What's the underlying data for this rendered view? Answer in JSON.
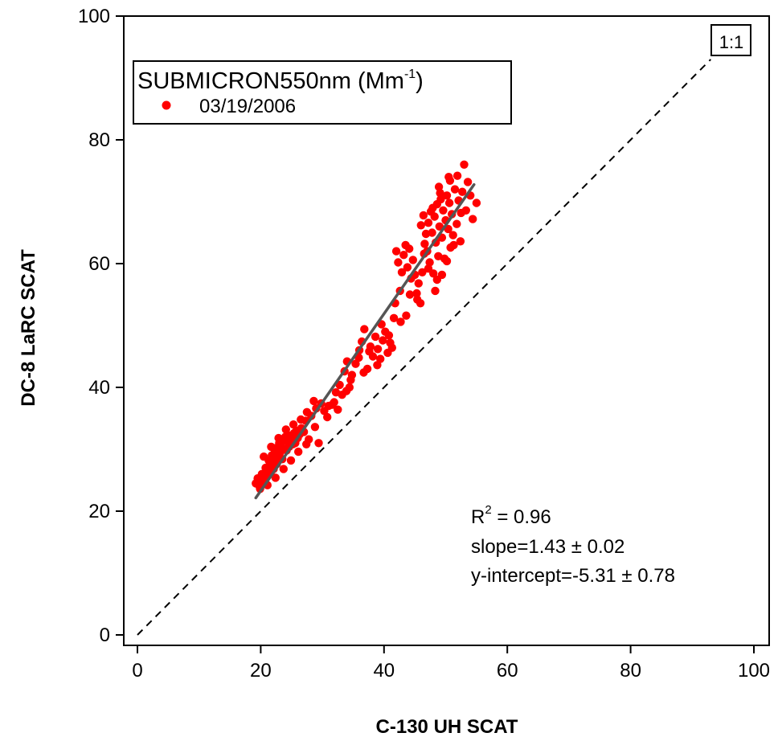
{
  "chart_data": {
    "type": "scatter",
    "xlabel": "C-130 UH SCAT",
    "ylabel": "DC-8 LaRC SCAT",
    "xlim": [
      -1,
      100
    ],
    "ylim": [
      -1,
      100
    ],
    "x_ticks": [
      0,
      20,
      40,
      60,
      80,
      100
    ],
    "y_ticks": [
      0,
      20,
      40,
      60,
      80,
      100
    ],
    "legend": {
      "title_main": "SUBMICRON550nm (Mm",
      "title_sup": "-1",
      "title_close": ")",
      "entries": [
        "03/19/2006"
      ],
      "placement": "top-left"
    },
    "one_to_one_label": "1:1",
    "stats": {
      "r2_prefix": "R",
      "r2_sup": "2",
      "r2_value": " = 0.96",
      "slope": "slope=1.43 ± 0.02",
      "intercept": "y-intercept=-5.31 ± 0.78"
    },
    "fit": {
      "slope": 1.43,
      "intercept": -5.31,
      "x_range": [
        19.2,
        54.6
      ]
    },
    "series": [
      {
        "name": "03/19/2006",
        "color": "#ff0000",
        "points": [
          [
            19.2,
            24.5
          ],
          [
            19.5,
            25.3
          ],
          [
            19.8,
            24.0
          ],
          [
            20.0,
            24.8
          ],
          [
            20.2,
            26.0
          ],
          [
            20.4,
            25.2
          ],
          [
            20.6,
            24.6
          ],
          [
            20.8,
            27.0
          ],
          [
            21.0,
            25.8
          ],
          [
            21.2,
            26.5
          ],
          [
            21.3,
            28.2
          ],
          [
            21.5,
            27.4
          ],
          [
            21.6,
            26.2
          ],
          [
            21.8,
            29.0
          ],
          [
            22.0,
            28.0
          ],
          [
            22.1,
            26.8
          ],
          [
            22.3,
            29.6
          ],
          [
            22.5,
            30.2
          ],
          [
            22.6,
            27.6
          ],
          [
            22.8,
            28.8
          ],
          [
            23.0,
            31.0
          ],
          [
            23.1,
            29.4
          ],
          [
            23.3,
            30.6
          ],
          [
            23.5,
            28.4
          ],
          [
            23.6,
            31.4
          ],
          [
            23.8,
            30.0
          ],
          [
            24.0,
            32.0
          ],
          [
            24.2,
            29.8
          ],
          [
            24.4,
            31.2
          ],
          [
            24.6,
            30.4
          ],
          [
            24.8,
            32.2
          ],
          [
            25.0,
            31.6
          ],
          [
            25.2,
            30.8
          ],
          [
            25.4,
            32.6
          ],
          [
            25.6,
            31.0
          ],
          [
            25.8,
            33.0
          ],
          [
            26.0,
            31.8
          ],
          [
            26.3,
            32.4
          ],
          [
            26.6,
            33.4
          ],
          [
            27.0,
            32.8
          ],
          [
            27.3,
            34.6
          ],
          [
            27.5,
            36.0
          ],
          [
            27.8,
            31.6
          ],
          [
            28.2,
            35.4
          ],
          [
            28.6,
            37.8
          ],
          [
            29.0,
            36.6
          ],
          [
            29.4,
            31.0
          ],
          [
            29.8,
            37.4
          ],
          [
            30.3,
            36.2
          ],
          [
            31.0,
            37.0
          ],
          [
            31.6,
            37.2
          ],
          [
            32.2,
            39.2
          ],
          [
            32.8,
            40.4
          ],
          [
            33.2,
            38.8
          ],
          [
            33.6,
            42.6
          ],
          [
            34.0,
            44.2
          ],
          [
            34.4,
            40.0
          ],
          [
            34.8,
            42.0
          ],
          [
            35.4,
            43.8
          ],
          [
            36.0,
            46.0
          ],
          [
            36.4,
            47.4
          ],
          [
            36.8,
            49.4
          ],
          [
            37.3,
            43.0
          ],
          [
            37.8,
            46.6
          ],
          [
            38.2,
            45.0
          ],
          [
            38.6,
            48.2
          ],
          [
            39.0,
            46.2
          ],
          [
            39.4,
            44.6
          ],
          [
            39.8,
            47.6
          ],
          [
            40.2,
            49.0
          ],
          [
            40.6,
            45.6
          ],
          [
            41.0,
            47.2
          ],
          [
            41.3,
            46.4
          ],
          [
            41.6,
            51.2
          ],
          [
            41.8,
            53.6
          ],
          [
            42.0,
            62.0
          ],
          [
            42.3,
            60.2
          ],
          [
            42.6,
            55.6
          ],
          [
            42.9,
            58.6
          ],
          [
            43.2,
            61.4
          ],
          [
            43.5,
            63.0
          ],
          [
            43.8,
            59.4
          ],
          [
            44.1,
            62.4
          ],
          [
            44.4,
            57.6
          ],
          [
            44.7,
            60.6
          ],
          [
            45.0,
            58.2
          ],
          [
            45.3,
            55.2
          ],
          [
            45.6,
            56.8
          ],
          [
            45.9,
            53.6
          ],
          [
            46.2,
            58.6
          ],
          [
            46.5,
            61.6
          ],
          [
            46.8,
            64.8
          ],
          [
            47.0,
            62.0
          ],
          [
            47.2,
            66.6
          ],
          [
            47.4,
            60.2
          ],
          [
            47.6,
            68.4
          ],
          [
            47.8,
            65.0
          ],
          [
            48.0,
            58.4
          ],
          [
            48.2,
            67.6
          ],
          [
            48.4,
            63.4
          ],
          [
            48.6,
            69.6
          ],
          [
            48.8,
            61.2
          ],
          [
            49.0,
            66.0
          ],
          [
            49.2,
            70.4
          ],
          [
            49.4,
            64.2
          ],
          [
            49.6,
            68.6
          ],
          [
            49.8,
            60.8
          ],
          [
            50.0,
            67.0
          ],
          [
            50.2,
            71.0
          ],
          [
            50.4,
            65.6
          ],
          [
            50.6,
            69.8
          ],
          [
            50.8,
            62.6
          ],
          [
            51.0,
            68.0
          ],
          [
            51.2,
            64.6
          ],
          [
            51.5,
            72.0
          ],
          [
            51.8,
            66.4
          ],
          [
            52.1,
            70.2
          ],
          [
            52.4,
            63.6
          ],
          [
            52.7,
            71.6
          ],
          [
            53.0,
            76.0
          ],
          [
            53.3,
            68.6
          ],
          [
            53.6,
            73.2
          ],
          [
            54.0,
            71.0
          ],
          [
            54.4,
            67.2
          ],
          [
            55.0,
            69.8
          ],
          [
            47.2,
            59.2
          ],
          [
            48.6,
            57.4
          ],
          [
            49.4,
            58.2
          ],
          [
            50.2,
            60.4
          ],
          [
            46.6,
            63.2
          ],
          [
            47.9,
            69.0
          ],
          [
            49.1,
            71.4
          ],
          [
            50.7,
            73.4
          ],
          [
            51.9,
            74.2
          ],
          [
            52.5,
            68.2
          ],
          [
            48.3,
            55.6
          ],
          [
            45.4,
            54.2
          ],
          [
            44.2,
            55.0
          ],
          [
            43.6,
            51.6
          ],
          [
            42.7,
            50.6
          ],
          [
            20.5,
            28.8
          ],
          [
            21.7,
            30.4
          ],
          [
            22.9,
            31.8
          ],
          [
            24.1,
            33.2
          ],
          [
            25.3,
            34.0
          ],
          [
            26.5,
            34.8
          ],
          [
            19.9,
            23.6
          ],
          [
            21.1,
            24.2
          ],
          [
            22.4,
            25.4
          ],
          [
            23.7,
            26.8
          ],
          [
            24.9,
            28.2
          ],
          [
            26.1,
            29.6
          ],
          [
            27.4,
            30.8
          ],
          [
            28.8,
            33.6
          ],
          [
            30.8,
            35.2
          ],
          [
            32.5,
            36.4
          ],
          [
            34.6,
            41.2
          ],
          [
            35.9,
            44.8
          ],
          [
            37.6,
            45.8
          ],
          [
            39.6,
            50.2
          ],
          [
            40.8,
            48.4
          ],
          [
            38.9,
            43.6
          ],
          [
            36.7,
            42.4
          ],
          [
            33.9,
            39.4
          ],
          [
            31.9,
            37.6
          ],
          [
            46.0,
            66.2
          ],
          [
            46.4,
            67.8
          ],
          [
            48.9,
            72.4
          ],
          [
            50.5,
            74.0
          ],
          [
            51.3,
            63.0
          ]
        ]
      }
    ]
  }
}
